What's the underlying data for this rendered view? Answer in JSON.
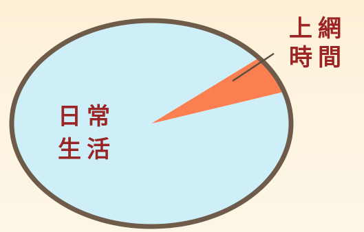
{
  "chart_data": {
    "type": "pie",
    "slices": [
      {
        "label_lines": [
          "日常",
          "生活"
        ],
        "value": 94,
        "color": "#cfeff8"
      },
      {
        "label_lines": [
          "上網",
          "時間"
        ],
        "value": 6,
        "color": "#fb7f50"
      }
    ],
    "outline_color": "#6f5b49",
    "label_color": "#9b2424"
  }
}
